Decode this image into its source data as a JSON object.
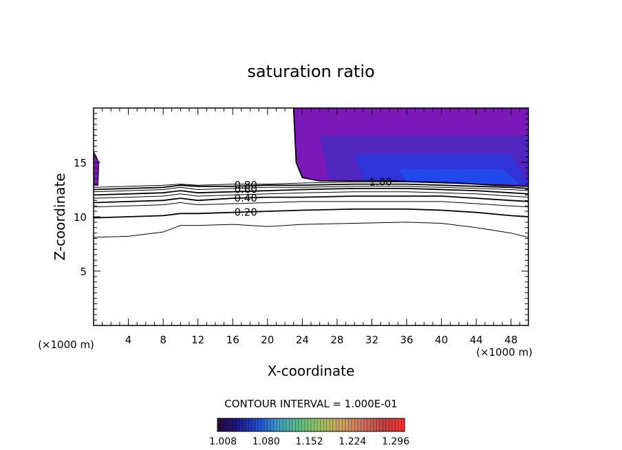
{
  "chart_data": {
    "type": "contour",
    "title": "saturation ratio",
    "xlabel": "X-coordinate",
    "ylabel": "Z-coordinate",
    "x_unit_label": "(×1000 m)",
    "z_unit_label": "(×1000 m)",
    "xlim": [
      0,
      50
    ],
    "ylim": [
      0,
      20
    ],
    "x_ticks": [
      4,
      8,
      12,
      16,
      20,
      24,
      28,
      32,
      36,
      40,
      44,
      48
    ],
    "y_ticks": [
      5,
      10,
      15
    ],
    "contour_interval_label": "CONTOUR INTERVAL = 1.000E-01",
    "contour_labels": [
      {
        "text": "0.80",
        "x": 17.5,
        "z": 12.9
      },
      {
        "text": "0.60",
        "x": 17.5,
        "z": 12.5
      },
      {
        "text": "0.40",
        "x": 17.5,
        "z": 11.7
      },
      {
        "text": "0.20",
        "x": 17.5,
        "z": 10.4
      },
      {
        "text": "1.00",
        "x": 33.0,
        "z": 13.2
      }
    ],
    "contour_lines": [
      {
        "level": 0.1,
        "x": [
          0,
          4,
          8,
          10,
          12,
          16,
          20,
          24,
          30,
          36,
          40,
          44,
          48,
          50
        ],
        "z": [
          8.1,
          8.2,
          8.6,
          9.2,
          9.2,
          9.3,
          9.1,
          9.3,
          9.4,
          9.5,
          9.4,
          9.0,
          8.5,
          8.1
        ]
      },
      {
        "level": 0.2,
        "x": [
          0,
          4,
          8,
          10,
          12,
          16,
          20,
          24,
          30,
          36,
          40,
          44,
          48,
          50
        ],
        "z": [
          9.9,
          10.0,
          10.1,
          10.3,
          10.3,
          10.4,
          10.5,
          10.6,
          10.7,
          10.7,
          10.6,
          10.4,
          10.1,
          10.0
        ]
      },
      {
        "level": 0.3,
        "x": [
          0,
          4,
          8,
          10,
          12,
          16,
          20,
          24,
          30,
          36,
          40,
          44,
          48,
          50
        ],
        "z": [
          10.9,
          11.0,
          11.1,
          11.3,
          11.1,
          11.2,
          11.3,
          11.4,
          11.4,
          11.4,
          11.4,
          11.2,
          11.0,
          10.9
        ]
      },
      {
        "level": 0.4,
        "x": [
          0,
          4,
          8,
          10,
          12,
          16,
          20,
          24,
          30,
          36,
          40,
          44,
          48,
          50
        ],
        "z": [
          11.3,
          11.4,
          11.5,
          11.7,
          11.5,
          11.7,
          11.8,
          11.8,
          11.9,
          11.9,
          11.9,
          11.7,
          11.5,
          11.4
        ]
      },
      {
        "level": 0.5,
        "x": [
          0,
          4,
          8,
          10,
          12,
          16,
          20,
          24,
          30,
          36,
          40,
          44,
          48,
          50
        ],
        "z": [
          11.7,
          11.8,
          11.9,
          12.1,
          11.9,
          12.0,
          12.1,
          12.2,
          12.3,
          12.3,
          12.2,
          12.1,
          11.9,
          11.8
        ]
      },
      {
        "level": 0.6,
        "x": [
          0,
          4,
          8,
          10,
          12,
          16,
          20,
          24,
          30,
          36,
          40,
          44,
          48,
          50
        ],
        "z": [
          12.0,
          12.1,
          12.2,
          12.4,
          12.2,
          12.3,
          12.4,
          12.5,
          12.6,
          12.6,
          12.5,
          12.4,
          12.2,
          12.1
        ]
      },
      {
        "level": 0.7,
        "x": [
          0,
          4,
          8,
          10,
          12,
          16,
          20,
          24,
          30,
          36,
          40,
          44,
          48,
          50
        ],
        "z": [
          12.3,
          12.4,
          12.5,
          12.7,
          12.5,
          12.6,
          12.7,
          12.7,
          12.8,
          12.8,
          12.7,
          12.6,
          12.5,
          12.4
        ]
      },
      {
        "level": 0.8,
        "x": [
          0,
          4,
          8,
          10,
          12,
          16,
          20,
          24,
          30,
          36,
          40,
          44,
          48,
          50
        ],
        "z": [
          12.5,
          12.6,
          12.7,
          12.9,
          12.8,
          12.8,
          12.9,
          12.9,
          13.0,
          13.0,
          12.9,
          12.8,
          12.7,
          12.6
        ]
      },
      {
        "level": 0.9,
        "x": [
          0,
          4,
          8,
          10,
          12,
          16,
          20,
          24,
          30,
          36,
          40,
          44,
          48,
          50
        ],
        "z": [
          12.7,
          12.8,
          12.9,
          13.0,
          12.9,
          13.0,
          13.0,
          13.1,
          13.2,
          13.2,
          13.1,
          13.0,
          12.9,
          12.8
        ]
      },
      {
        "level": 1.0,
        "x": [
          23.0,
          23.3,
          24.0,
          26,
          30,
          34,
          38,
          42,
          46,
          50
        ],
        "z": [
          20.0,
          15.0,
          13.6,
          13.3,
          13.3,
          13.3,
          13.2,
          13.1,
          12.9,
          12.8
        ]
      }
    ],
    "supersaturated_regions": [
      {
        "x": [
          23.0,
          50,
          50,
          46,
          42,
          38,
          34,
          30,
          26,
          24.0,
          23.3
        ],
        "z": [
          20.0,
          20.0,
          12.8,
          12.9,
          13.1,
          13.2,
          13.3,
          13.3,
          13.3,
          13.6,
          15.0
        ]
      },
      {
        "x": [
          0,
          0.6,
          0.5,
          0
        ],
        "z": [
          16.0,
          15.0,
          12.9,
          12.9
        ]
      }
    ],
    "colorbar": {
      "labels": [
        "1.008",
        "1.080",
        "1.152",
        "1.224",
        "1.296"
      ],
      "min": 1.008,
      "max": 1.32,
      "colors": [
        "#2a0a3a",
        "#1a1a8a",
        "#2050d0",
        "#40a0c0",
        "#60c080",
        "#a0c060",
        "#d0a060",
        "#d07060",
        "#c04040",
        "#ff3030"
      ]
    },
    "fill_colors": {
      "outer": "#7a18b8",
      "mid": "#4a28c0",
      "inner": "#2a36d8",
      "core": "#1d4cf0"
    }
  }
}
